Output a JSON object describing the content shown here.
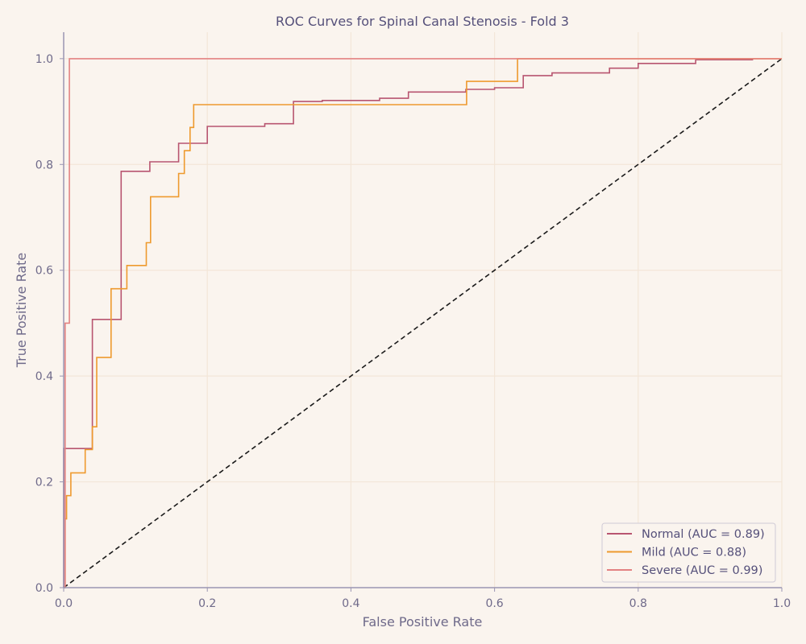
{
  "chart_data": {
    "type": "line",
    "title": "ROC Curves for Spinal Canal Stenosis - Fold 3",
    "xlabel": "False Positive Rate",
    "ylabel": "True Positive Rate",
    "xlim": [
      0,
      1
    ],
    "ylim": [
      0,
      1.05
    ],
    "xticks": [
      "0.0",
      "0.2",
      "0.4",
      "0.6",
      "0.8",
      "1.0"
    ],
    "yticks": [
      "0.0",
      "0.2",
      "0.4",
      "0.6",
      "0.8",
      "1.0"
    ],
    "grid": true,
    "legend_position": "bottom-right",
    "series": [
      {
        "name": "Normal (AUC = 0.89)",
        "color": "#b85570",
        "x": [
          0.0,
          0.0,
          0.0,
          0.04,
          0.04,
          0.08,
          0.08,
          0.12,
          0.12,
          0.16,
          0.16,
          0.2,
          0.2,
          0.28,
          0.28,
          0.32,
          0.32,
          0.36,
          0.36,
          0.44,
          0.44,
          0.48,
          0.48,
          0.56,
          0.56,
          0.6,
          0.6,
          0.64,
          0.64,
          0.68,
          0.68,
          0.76,
          0.76,
          0.8,
          0.8,
          0.88,
          0.88,
          0.96
        ],
        "y": [
          0.0,
          0.0,
          0.263,
          0.263,
          0.507,
          0.507,
          0.787,
          0.787,
          0.805,
          0.805,
          0.84,
          0.84,
          0.872,
          0.872,
          0.877,
          0.877,
          0.919,
          0.919,
          0.921,
          0.921,
          0.925,
          0.925,
          0.937,
          0.937,
          0.942,
          0.942,
          0.945,
          0.945,
          0.968,
          0.968,
          0.973,
          0.973,
          0.982,
          0.982,
          0.991,
          0.991,
          0.998,
          0.998
        ]
      },
      {
        "name": "Mild (AUC = 0.88)",
        "color": "#ee9a2e",
        "x": [
          0.0,
          0.002,
          0.002,
          0.004,
          0.004,
          0.006,
          0.006,
          0.01,
          0.01,
          0.03,
          0.03,
          0.04,
          0.04,
          0.046,
          0.046,
          0.066,
          0.066,
          0.088,
          0.088,
          0.115,
          0.115,
          0.121,
          0.121,
          0.16,
          0.16,
          0.168,
          0.168,
          0.176,
          0.176,
          0.181,
          0.181,
          0.561,
          0.561,
          0.632,
          0.632,
          1.0
        ],
        "y": [
          0.0,
          0.0,
          0.13,
          0.13,
          0.174,
          0.174,
          0.174,
          0.174,
          0.217,
          0.217,
          0.261,
          0.261,
          0.304,
          0.304,
          0.435,
          0.435,
          0.565,
          0.565,
          0.609,
          0.609,
          0.652,
          0.652,
          0.739,
          0.739,
          0.783,
          0.783,
          0.826,
          0.826,
          0.87,
          0.87,
          0.913,
          0.913,
          0.957,
          0.957,
          1.0,
          1.0
        ]
      },
      {
        "name": "Severe (AUC = 0.99)",
        "color": "#e38282",
        "x": [
          0.0,
          0.002,
          0.002,
          0.008,
          0.008,
          1.0
        ],
        "y": [
          0.0,
          0.0,
          0.5,
          0.5,
          1.0,
          1.0
        ]
      }
    ],
    "reference_line": {
      "x": [
        0,
        1
      ],
      "y": [
        0,
        1
      ],
      "color": "#1a1a1a",
      "style": "dashed"
    }
  }
}
